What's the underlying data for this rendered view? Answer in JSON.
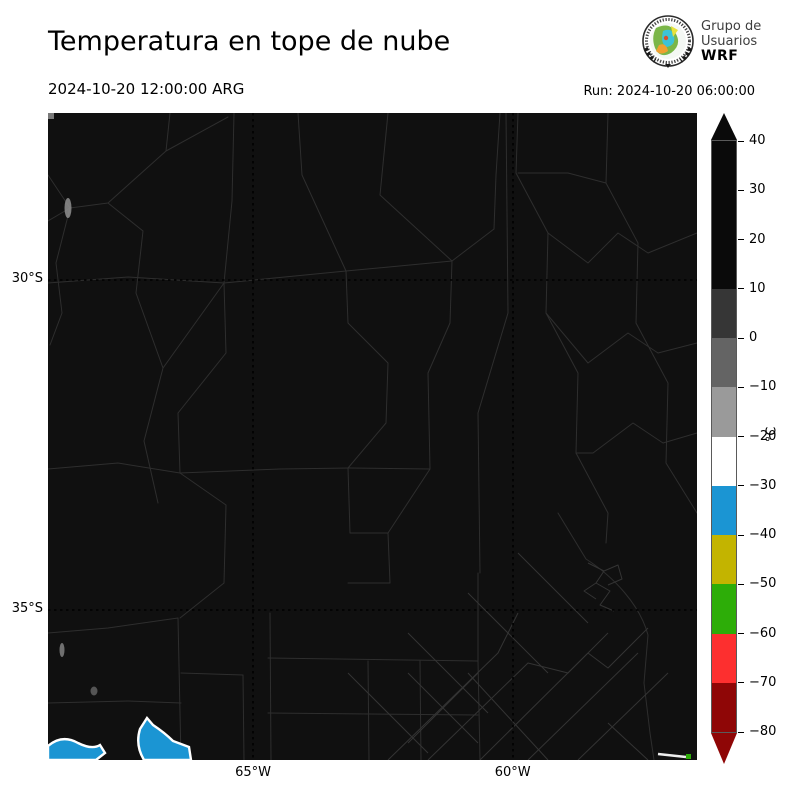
{
  "header": {
    "title": "Temperatura en tope de nube",
    "valid_time": "2024-10-20 12:00:00 ARG",
    "run": "Run: 2024-10-20 06:00:00",
    "logo": {
      "line1": "Grupo de",
      "line2": "Usuarios",
      "line3": "WRF"
    }
  },
  "map": {
    "background_color": "#101010",
    "boundary_color": "#2e2e2e",
    "gridline_color": "#000000",
    "lat_ticks": [
      {
        "label": "30°S",
        "y_pct": 25.8
      },
      {
        "label": "35°S",
        "y_pct": 76.8
      }
    ],
    "lon_ticks": [
      {
        "label": "65°W",
        "x_pct": 31.6
      },
      {
        "label": "60°W",
        "x_pct": 71.6
      }
    ],
    "features": {
      "cold_cloud_fill": "#1b95d3",
      "cold_cloud_edge": "#ffffff",
      "thin_cloud_color": "#8f8f8f",
      "corner_streak_white": "#eeeeee",
      "corner_streak_green": "#2dad08"
    }
  },
  "colorbar": {
    "unit": "°C",
    "vmin": -80,
    "vmax": 40,
    "ticks": [
      {
        "v": 40,
        "label": "40"
      },
      {
        "v": 30,
        "label": "30"
      },
      {
        "v": 20,
        "label": "20"
      },
      {
        "v": 10,
        "label": "10"
      },
      {
        "v": 0,
        "label": "0"
      },
      {
        "v": -10,
        "label": "−10"
      },
      {
        "v": -20,
        "label": "−20"
      },
      {
        "v": -30,
        "label": "−30"
      },
      {
        "v": -40,
        "label": "−40"
      },
      {
        "v": -50,
        "label": "−50"
      },
      {
        "v": -60,
        "label": "−60"
      },
      {
        "v": -70,
        "label": "−70"
      },
      {
        "v": -80,
        "label": "−80"
      }
    ],
    "segments": [
      {
        "from": 10,
        "to": 40,
        "color": "#0a0a0a"
      },
      {
        "from": 0,
        "to": 10,
        "color": "#363636"
      },
      {
        "from": -10,
        "to": 0,
        "color": "#646464"
      },
      {
        "from": -20,
        "to": -10,
        "color": "#9a9a9a"
      },
      {
        "from": -30,
        "to": -20,
        "color": "#ffffff"
      },
      {
        "from": -40,
        "to": -30,
        "color": "#1b95d3"
      },
      {
        "from": -50,
        "to": -40,
        "color": "#c3b400"
      },
      {
        "from": -60,
        "to": -50,
        "color": "#2dad08"
      },
      {
        "from": -70,
        "to": -60,
        "color": "#fd2f2f"
      },
      {
        "from": -80,
        "to": -70,
        "color": "#8f0606"
      }
    ],
    "extend_above_color": "#0a0a0a",
    "extend_below_color": "#8f0606"
  }
}
